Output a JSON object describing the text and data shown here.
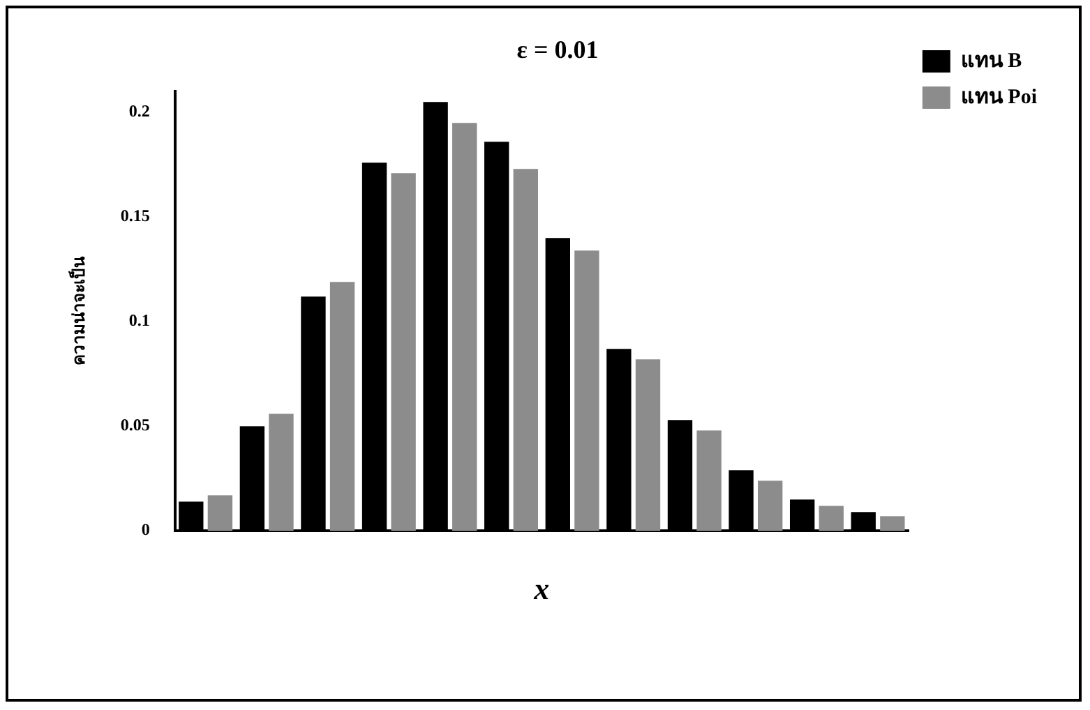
{
  "chart_data": {
    "type": "bar",
    "title": "ε = 0.01",
    "xlabel": "x",
    "ylabel": "ความน่าจะเป็น",
    "categories": [
      null,
      null,
      null,
      null,
      null,
      null,
      null,
      null,
      null,
      null,
      null,
      null
    ],
    "series": [
      {
        "name": "แทน B",
        "color": "#000000",
        "values": [
          0.014,
          0.05,
          0.112,
          0.176,
          0.205,
          0.186,
          0.14,
          0.087,
          0.053,
          0.029,
          0.015,
          0.009
        ]
      },
      {
        "name": "แทน Poi",
        "color": "#8c8c8c",
        "values": [
          0.017,
          0.056,
          0.119,
          0.171,
          0.195,
          0.173,
          0.134,
          0.082,
          0.048,
          0.024,
          0.012,
          0.007
        ]
      }
    ],
    "ylim": [
      0,
      0.21
    ],
    "yticks": [
      0,
      0.05,
      0.1,
      0.15,
      0.2
    ],
    "grid": false,
    "legend": "top right",
    "tick_labels": "y"
  }
}
